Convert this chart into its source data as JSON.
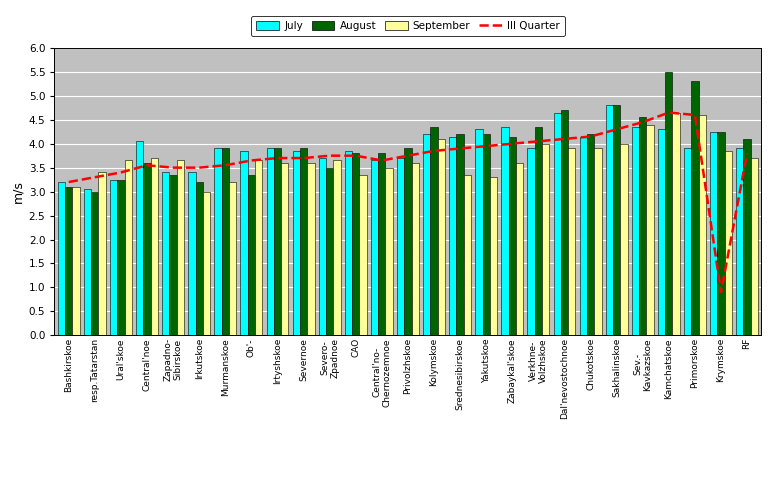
{
  "categories": [
    "Bashkirskoe",
    "resp.Tatarstan",
    "Ural'skoe",
    "Central'noe",
    "Zapadno-\nSibirskoe",
    "Irkutskoe",
    "Murmanskoe",
    "Ob'-",
    "Irtyshskoe",
    "Severnoe",
    "Severo-\nZpadnoe",
    "CAO",
    "Central'no-\nChernozemnoe",
    "Privolzhskoe",
    "Kolymskoe",
    "Srednesibirskoe",
    "Yakutskoe",
    "Zabaykal'skoe",
    "Verkhne-\nVolzhskoe",
    "Dal'nevostochnoe",
    "Chukotskoe",
    "Sakhalinskoe",
    "Sev.-\nKavkazskoe",
    "Kamchatskoe",
    "Primorskoe",
    "Krymskoe",
    "RF"
  ],
  "july": [
    3.2,
    3.05,
    3.25,
    4.05,
    3.4,
    3.4,
    3.9,
    3.85,
    3.9,
    3.85,
    3.7,
    3.85,
    3.65,
    3.7,
    4.2,
    4.15,
    4.3,
    4.35,
    3.9,
    4.65,
    4.15,
    4.8,
    4.35,
    4.3,
    3.9,
    4.25,
    3.9
  ],
  "august": [
    3.1,
    3.0,
    3.25,
    3.6,
    3.35,
    3.2,
    3.9,
    3.35,
    3.9,
    3.9,
    3.5,
    3.8,
    3.8,
    3.9,
    4.35,
    4.2,
    4.2,
    4.15,
    4.35,
    4.7,
    4.2,
    4.8,
    4.55,
    5.5,
    5.3,
    4.25,
    4.1
  ],
  "september": [
    3.1,
    3.4,
    3.65,
    3.7,
    3.65,
    3.0,
    3.2,
    3.65,
    3.6,
    3.6,
    3.65,
    3.35,
    3.5,
    3.6,
    4.1,
    3.35,
    3.3,
    3.6,
    4.0,
    3.9,
    3.9,
    4.0,
    4.4,
    4.65,
    4.6,
    3.85,
    3.7
  ],
  "iii_quarter": [
    3.2,
    3.3,
    3.4,
    3.55,
    3.5,
    3.5,
    3.55,
    3.65,
    3.7,
    3.7,
    3.75,
    3.75,
    3.65,
    3.75,
    3.85,
    3.9,
    3.95,
    4.0,
    4.05,
    4.1,
    4.15,
    4.3,
    4.45,
    4.65,
    4.6,
    0.9,
    3.8
  ],
  "bar_width": 0.28,
  "ylim": [
    0,
    6
  ],
  "yticks": [
    0,
    0.5,
    1.0,
    1.5,
    2.0,
    2.5,
    3.0,
    3.5,
    4.0,
    4.5,
    5.0,
    5.5,
    6.0
  ],
  "ylabel": "m/s",
  "color_july": "#00FFFF",
  "color_august": "#006400",
  "color_september": "#FFFF99",
  "color_iii_quarter": "#FF0000",
  "bg_color": "#C0C0C0",
  "grid_color": "#FFFFFF"
}
